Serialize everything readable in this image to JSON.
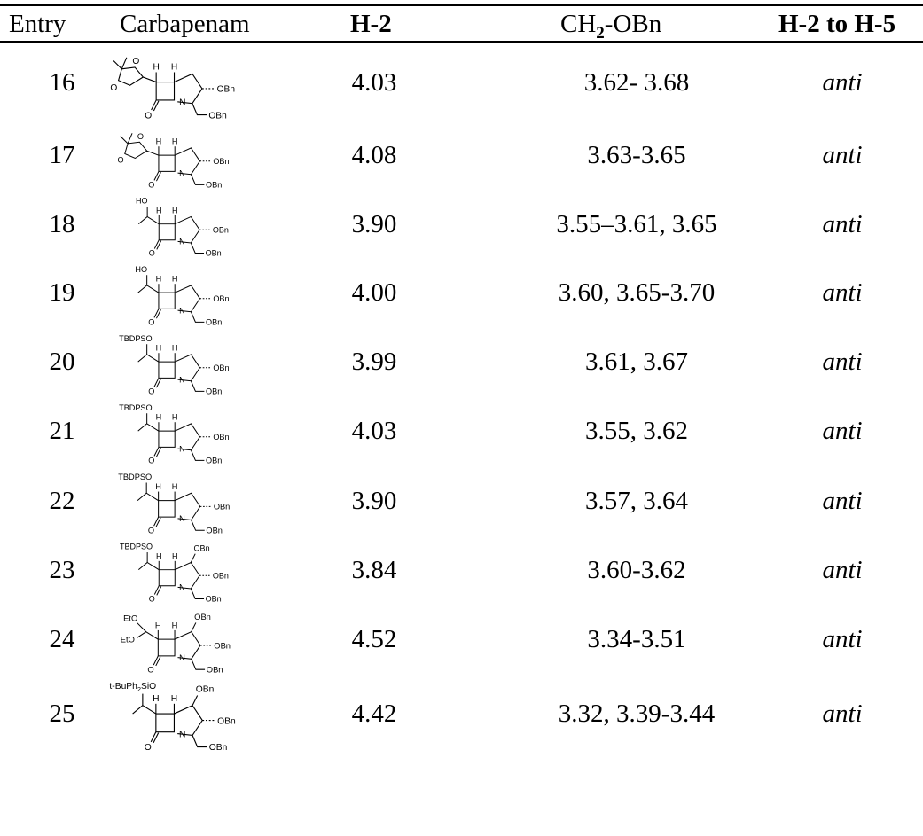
{
  "table": {
    "headers": {
      "entry": "Entry",
      "carbapenam": "Carbapenam",
      "h2": "H-2",
      "ch2_prefix": "CH",
      "ch2_sub": "2",
      "ch2_suffix": "-OBn",
      "relation": "H-2 to H-5"
    },
    "rows": [
      {
        "entry": "16",
        "h2": "4.03",
        "ch2": "3.62- 3.68",
        "relation": "anti",
        "substituent": "acetonide"
      },
      {
        "entry": "17",
        "h2": "4.08",
        "ch2": "3.63-3.65",
        "relation": "anti",
        "substituent": "acetonide"
      },
      {
        "entry": "18",
        "h2": "3.90",
        "ch2": "3.55–3.61, 3.65",
        "relation": "anti",
        "substituent": "hydroxyethyl"
      },
      {
        "entry": "19",
        "h2": "4.00",
        "ch2": "3.60, 3.65-3.70",
        "relation": "anti",
        "substituent": "hydroxyethyl"
      },
      {
        "entry": "20",
        "h2": "3.99",
        "ch2": "3.61, 3.67",
        "relation": "anti",
        "substituent": "tbdps"
      },
      {
        "entry": "21",
        "h2": "4.03",
        "ch2": "3.55, 3.62",
        "relation": "anti",
        "substituent": "tbdps"
      },
      {
        "entry": "22",
        "h2": "3.90",
        "ch2": "3.57, 3.64",
        "relation": "anti",
        "substituent": "tbdps"
      },
      {
        "entry": "23",
        "h2": "3.84",
        "ch2": "3.60-3.62",
        "relation": "anti",
        "substituent": "tbdps-obn"
      },
      {
        "entry": "24",
        "h2": "4.52",
        "ch2": "3.34-3.51",
        "relation": "anti",
        "substituent": "diethoxy"
      },
      {
        "entry": "25",
        "h2": "4.42",
        "ch2": "3.32, 3.39-3.44",
        "relation": "anti",
        "substituent": "tbups"
      }
    ]
  },
  "labels": {
    "obn": "OBn",
    "h": "H",
    "n": "N",
    "o": "O",
    "ho": "HO",
    "tbdpso": "TBDPSO",
    "eto": "EtO",
    "tbups_pre": "t-BuPh",
    "tbups_sub": "2",
    "tbups_post": "SiO"
  }
}
